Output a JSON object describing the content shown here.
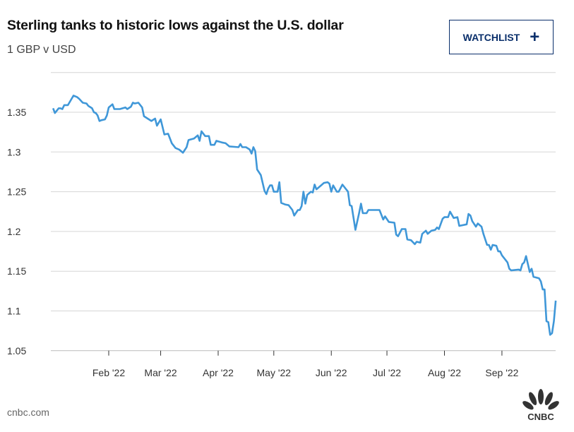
{
  "header": {
    "title": "Sterling tanks to historic lows against the U.S. dollar",
    "subtitle": "1 GBP v USD",
    "watchlist_label": "WATCHLIST",
    "watchlist_icon": "plus-icon"
  },
  "footer": {
    "source": "cnbc.com",
    "logo_text": "CNBC"
  },
  "colors": {
    "line": "#3f97d8",
    "grid": "#d6d6d6",
    "button": "#0a2f6b"
  },
  "chart_data": {
    "type": "line",
    "title": "Sterling tanks to historic lows against the U.S. dollar",
    "ylabel": "1 GBP v USD",
    "xlabel": "",
    "x_unit": "day of year 2022",
    "ylim": [
      1.05,
      1.4
    ],
    "xlim": [
      1,
      273
    ],
    "grid": true,
    "yticks": [
      {
        "v": 1.05,
        "label": "1.05"
      },
      {
        "v": 1.1,
        "label": "1.1"
      },
      {
        "v": 1.15,
        "label": "1.15"
      },
      {
        "v": 1.2,
        "label": "1.2"
      },
      {
        "v": 1.25,
        "label": "1.25"
      },
      {
        "v": 1.3,
        "label": "1.3"
      },
      {
        "v": 1.35,
        "label": "1.35"
      },
      {
        "v": 1.4,
        "label": ""
      }
    ],
    "xticks": [
      {
        "d": 32,
        "label": "Feb '22"
      },
      {
        "d": 60,
        "label": "Mar '22"
      },
      {
        "d": 91,
        "label": "Apr '22"
      },
      {
        "d": 121,
        "label": "May '22"
      },
      {
        "d": 152,
        "label": "Jun '22"
      },
      {
        "d": 182,
        "label": "Jul '22"
      },
      {
        "d": 213,
        "label": "Aug '22"
      },
      {
        "d": 244,
        "label": "Sep '22"
      }
    ],
    "series": [
      {
        "name": "GBP/USD",
        "x": [
          2,
          3,
          5,
          6,
          7,
          8,
          10,
          13,
          15,
          16,
          18,
          20,
          21,
          23,
          24,
          25,
          26,
          27,
          28,
          30,
          31,
          32,
          34,
          35,
          38,
          41,
          42,
          44,
          45,
          46,
          48,
          50,
          51,
          55,
          57,
          58,
          60,
          62,
          64,
          66,
          68,
          70,
          72,
          74,
          75,
          78,
          80,
          81,
          82,
          84,
          86,
          87,
          89,
          90,
          93,
          95,
          97,
          102,
          103,
          104,
          106,
          108,
          109,
          110,
          111,
          112,
          114,
          116,
          117,
          118,
          119,
          120,
          121,
          123,
          124,
          125,
          127,
          129,
          131,
          132,
          134,
          135,
          136,
          137,
          138,
          139,
          141,
          142,
          143,
          144,
          147,
          148,
          150,
          151,
          152,
          153,
          155,
          156,
          158,
          161,
          162,
          163,
          165,
          167,
          168,
          169,
          171,
          172,
          178,
          180,
          181,
          183,
          186,
          187,
          188,
          190,
          192,
          193,
          195,
          197,
          198,
          200,
          201,
          203,
          204,
          206,
          208,
          209,
          210,
          212,
          213,
          215,
          216,
          218,
          220,
          221,
          225,
          226,
          227,
          228,
          230,
          231,
          233,
          234,
          236,
          237,
          238,
          239,
          241,
          242,
          243,
          244,
          246,
          247,
          248,
          249,
          253,
          254,
          255,
          256,
          257,
          259,
          260,
          261,
          264,
          265,
          266,
          267,
          268,
          269,
          270,
          271,
          272,
          273
        ],
        "y": [
          1.355,
          1.349,
          1.355,
          1.355,
          1.354,
          1.359,
          1.359,
          1.371,
          1.369,
          1.367,
          1.362,
          1.361,
          1.358,
          1.355,
          1.35,
          1.349,
          1.346,
          1.339,
          1.34,
          1.341,
          1.346,
          1.356,
          1.36,
          1.354,
          1.354,
          1.356,
          1.354,
          1.357,
          1.362,
          1.361,
          1.362,
          1.356,
          1.345,
          1.339,
          1.342,
          1.333,
          1.341,
          1.322,
          1.323,
          1.311,
          1.305,
          1.303,
          1.299,
          1.306,
          1.315,
          1.317,
          1.321,
          1.314,
          1.326,
          1.32,
          1.32,
          1.309,
          1.309,
          1.314,
          1.312,
          1.311,
          1.307,
          1.306,
          1.31,
          1.306,
          1.306,
          1.303,
          1.298,
          1.306,
          1.301,
          1.278,
          1.271,
          1.251,
          1.247,
          1.254,
          1.258,
          1.258,
          1.25,
          1.25,
          1.262,
          1.236,
          1.234,
          1.233,
          1.227,
          1.22,
          1.227,
          1.227,
          1.232,
          1.25,
          1.235,
          1.246,
          1.25,
          1.249,
          1.259,
          1.253,
          1.259,
          1.261,
          1.262,
          1.26,
          1.25,
          1.258,
          1.25,
          1.25,
          1.259,
          1.25,
          1.233,
          1.232,
          1.202,
          1.223,
          1.235,
          1.223,
          1.223,
          1.227,
          1.227,
          1.215,
          1.219,
          1.212,
          1.211,
          1.196,
          1.194,
          1.203,
          1.203,
          1.19,
          1.189,
          1.184,
          1.187,
          1.186,
          1.197,
          1.201,
          1.197,
          1.201,
          1.202,
          1.205,
          1.203,
          1.216,
          1.218,
          1.218,
          1.225,
          1.217,
          1.218,
          1.207,
          1.209,
          1.222,
          1.22,
          1.213,
          1.206,
          1.21,
          1.206,
          1.197,
          1.183,
          1.183,
          1.177,
          1.183,
          1.182,
          1.175,
          1.175,
          1.17,
          1.164,
          1.161,
          1.153,
          1.151,
          1.152,
          1.151,
          1.159,
          1.161,
          1.169,
          1.149,
          1.153,
          1.143,
          1.141,
          1.137,
          1.127,
          1.127,
          1.087,
          1.086,
          1.07,
          1.072,
          1.087,
          1.113
        ]
      }
    ]
  }
}
